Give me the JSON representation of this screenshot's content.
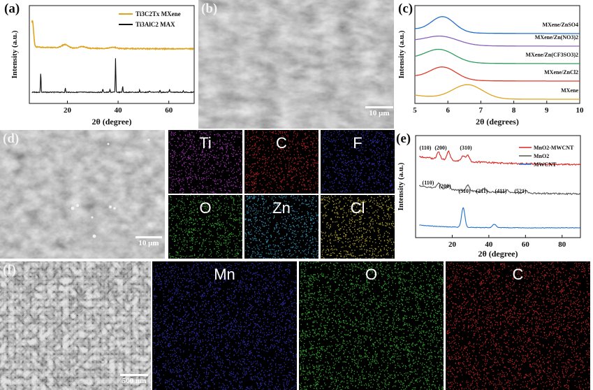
{
  "panels": {
    "a": {
      "label": "(a)",
      "chart_data": {
        "type": "line",
        "xlabel": "2θ (degree)",
        "ylabel": "Intensity (a.u.)",
        "xlim": [
          5,
          70
        ],
        "xticks": [
          20,
          40,
          60
        ],
        "series": [
          {
            "name": "Ti3C2Tx MXene",
            "color": "#e0a31c",
            "peaks": [
              [
                6.2,
                1.0
              ],
              [
                19.0,
                0.12
              ],
              [
                26.0,
                0.06
              ],
              [
                38.0,
                0.05
              ]
            ]
          },
          {
            "name": "Ti3AlC2 MAX",
            "color": "#111111",
            "peaks": [
              [
                9.5,
                0.6
              ],
              [
                19.2,
                0.12
              ],
              [
                34.0,
                0.1
              ],
              [
                36.8,
                0.08
              ],
              [
                39.0,
                1.0
              ],
              [
                41.8,
                0.18
              ],
              [
                48.5,
                0.07
              ],
              [
                52.4,
                0.05
              ],
              [
                56.5,
                0.06
              ],
              [
                60.3,
                0.1
              ],
              [
                65.7,
                0.04
              ]
            ]
          }
        ],
        "legend": [
          "Ti3C2Tx MXene",
          "Ti3AlC2 MAX"
        ]
      }
    },
    "b": {
      "label": "(b)",
      "scale": "10 μm"
    },
    "c": {
      "label": "(c)",
      "chart_data": {
        "type": "line",
        "xlabel": "2θ (degrees)",
        "ylabel": "Intensity (a.u.)",
        "xlim": [
          5,
          10
        ],
        "xticks": [
          5,
          6,
          7,
          8,
          9,
          10
        ],
        "series": [
          {
            "name": "MXene/ZnSO4",
            "color": "#1f6fcf",
            "peak": 5.85
          },
          {
            "name": "MXene/Zn(NO3)2",
            "color": "#8a63c0",
            "peak": 5.8
          },
          {
            "name": "MXene/Zn(CF3SO3)2",
            "color": "#2e9e5e",
            "peak": 5.75
          },
          {
            "name": "MXene/ZnCl2",
            "color": "#e0392b",
            "peak": 5.85
          },
          {
            "name": "MXene",
            "color": "#e0a31c",
            "peak": 6.6
          }
        ]
      }
    },
    "d": {
      "label": "(d)",
      "scale": "10 μm"
    },
    "d_maps": [
      {
        "element": "Ti",
        "color": "#c23fd4"
      },
      {
        "element": "C",
        "color": "#d92b2b"
      },
      {
        "element": "F",
        "color": "#3a3ad0"
      },
      {
        "element": "O",
        "color": "#3fcf3a"
      },
      {
        "element": "Zn",
        "color": "#3fb6e0"
      },
      {
        "element": "Cl",
        "color": "#e0d03a"
      }
    ],
    "e": {
      "label": "(e)",
      "chart_data": {
        "type": "line",
        "xlabel": "2θ (degree)",
        "ylabel": "Intensity (a.u.)",
        "xlim": [
          0,
          90
        ],
        "xticks": [
          20,
          40,
          60,
          80
        ],
        "series": [
          {
            "name": "MnO2-MWCNT",
            "color": "#e0201c"
          },
          {
            "name": "MnO2",
            "color": "#555555"
          },
          {
            "name": "MWCNT",
            "color": "#1f6fcf"
          }
        ],
        "annotations_top": [
          "(110)",
          "(200)",
          "(310)"
        ],
        "annotations_mid": [
          "(110)",
          "(200)",
          "(310)",
          "(211)",
          "(411)",
          "(521)"
        ]
      }
    },
    "f": {
      "label": "(f)",
      "scale": "500 nm"
    },
    "f_maps": [
      {
        "element": "Mn",
        "color": "#3a3ad0"
      },
      {
        "element": "O",
        "color": "#3fcf3a"
      },
      {
        "element": "C",
        "color": "#d92b2b"
      }
    ]
  }
}
